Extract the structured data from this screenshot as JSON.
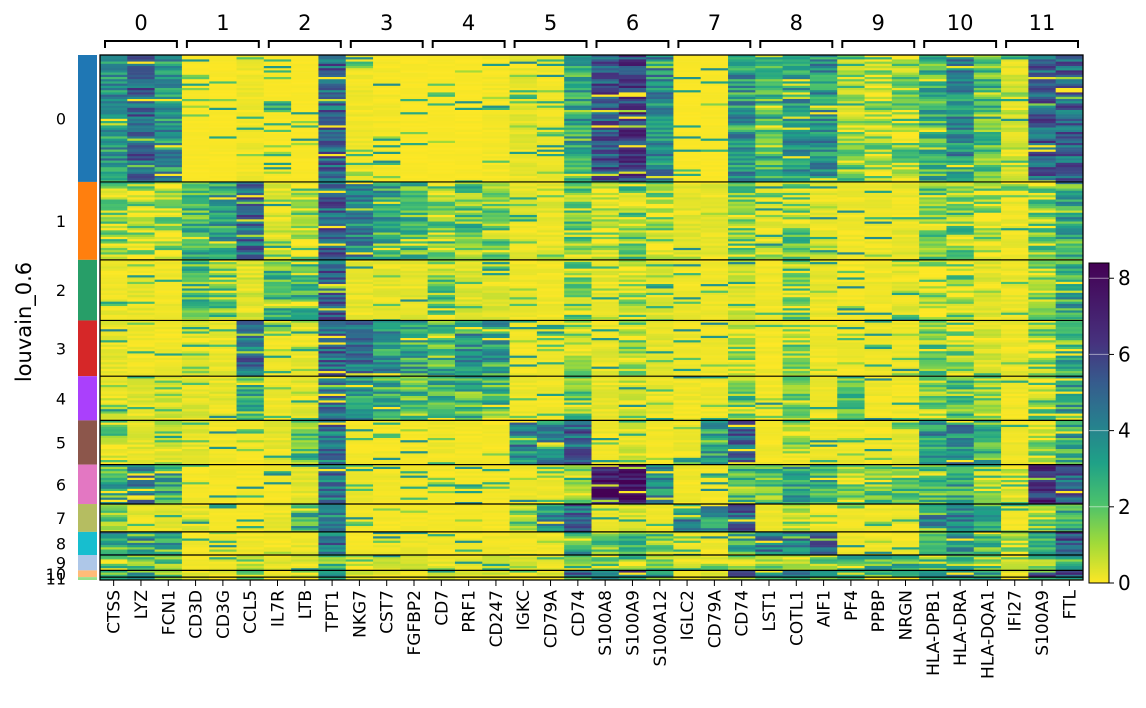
{
  "chart_data": {
    "type": "heatmap",
    "ylabel": "louvain_0.6",
    "group_labels": [
      "0",
      "1",
      "2",
      "3",
      "4",
      "5",
      "6",
      "7",
      "8",
      "9",
      "10",
      "11"
    ],
    "genes": [
      "CTSS",
      "LYZ",
      "FCN1",
      "CD3D",
      "CD3G",
      "CCL5",
      "IL7R",
      "LTB",
      "TPT1",
      "NKG7",
      "CST7",
      "FGFBP2",
      "CD7",
      "PRF1",
      "CD247",
      "IGKC",
      "CD79A",
      "CD74",
      "S100A8",
      "S100A9",
      "S100A12",
      "IGLC2",
      "CD79A",
      "CD74",
      "LST1",
      "COTL1",
      "AIF1",
      "PF4",
      "PPBP",
      "NRGN",
      "HLA-DPB1",
      "HLA-DRA",
      "HLA-DQA1",
      "IFI27",
      "S100A9",
      "FTL"
    ],
    "gene_groups": [
      {
        "label": "0",
        "genes": [
          "CTSS",
          "LYZ",
          "FCN1"
        ]
      },
      {
        "label": "1",
        "genes": [
          "CD3D",
          "CD3G",
          "CCL5"
        ]
      },
      {
        "label": "2",
        "genes": [
          "IL7R",
          "LTB",
          "TPT1"
        ]
      },
      {
        "label": "3",
        "genes": [
          "NKG7",
          "CST7",
          "FGFBP2"
        ]
      },
      {
        "label": "4",
        "genes": [
          "CD7",
          "PRF1",
          "CD247"
        ]
      },
      {
        "label": "5",
        "genes": [
          "IGKC",
          "CD79A",
          "CD74"
        ]
      },
      {
        "label": "6",
        "genes": [
          "S100A8",
          "S100A9",
          "S100A12"
        ]
      },
      {
        "label": "7",
        "genes": [
          "IGLC2",
          "CD79A",
          "CD74"
        ]
      },
      {
        "label": "8",
        "genes": [
          "LST1",
          "COTL1",
          "AIF1"
        ]
      },
      {
        "label": "9",
        "genes": [
          "PF4",
          "PPBP",
          "NRGN"
        ]
      },
      {
        "label": "10",
        "genes": [
          "HLA-DPB1",
          "HLA-DRA",
          "HLA-DQA1"
        ]
      },
      {
        "label": "11",
        "genes": [
          "IFI27",
          "S100A9",
          "FTL"
        ]
      }
    ],
    "clusters": [
      {
        "label": "0",
        "cell_fraction": 0.2418,
        "color": "#1f77b4"
      },
      {
        "label": "1",
        "cell_fraction": 0.1484,
        "color": "#ff7f0e"
      },
      {
        "label": "2",
        "cell_fraction": 0.1154,
        "color": "#279e68"
      },
      {
        "label": "3",
        "cell_fraction": 0.1062,
        "color": "#d62728"
      },
      {
        "label": "4",
        "cell_fraction": 0.0842,
        "color": "#aa40fc"
      },
      {
        "label": "5",
        "cell_fraction": 0.0842,
        "color": "#8c564b"
      },
      {
        "label": "6",
        "cell_fraction": 0.0751,
        "color": "#e377c2"
      },
      {
        "label": "7",
        "cell_fraction": 0.0531,
        "color": "#b5bd61"
      },
      {
        "label": "8",
        "cell_fraction": 0.044,
        "color": "#17becf"
      },
      {
        "label": "9",
        "cell_fraction": 0.0293,
        "color": "#aec7e8"
      },
      {
        "label": "10",
        "cell_fraction": 0.0128,
        "color": "#ffbb78"
      },
      {
        "label": "11",
        "cell_fraction": 0.0055,
        "color": "#98df8a"
      }
    ],
    "mean_expression": [
      [
        3.5,
        5.0,
        3.5,
        0.1,
        0.1,
        0.3,
        0.1,
        0.1,
        5.0,
        0.3,
        0.2,
        0.1,
        0.1,
        0.1,
        0.2,
        0.5,
        0.3,
        3.0,
        5.5,
        6.0,
        3.8,
        0.1,
        0.1,
        3.5,
        2.5,
        3.3,
        3.6,
        1.5,
        1.0,
        1.2,
        2.5,
        3.8,
        2.2,
        0.8,
        5.2,
        5.0
      ],
      [
        1.2,
        1.0,
        1.0,
        2.5,
        3.0,
        4.8,
        0.8,
        1.2,
        5.0,
        4.0,
        3.0,
        2.2,
        1.5,
        2.0,
        1.5,
        0.5,
        0.5,
        1.5,
        1.0,
        1.5,
        1.0,
        0.5,
        0.5,
        1.3,
        0.5,
        1.5,
        0.6,
        0.3,
        0.3,
        0.5,
        1.5,
        1.5,
        1.0,
        0.4,
        1.5,
        3.2
      ],
      [
        0.4,
        0.5,
        0.3,
        2.0,
        1.8,
        0.8,
        2.2,
        2.5,
        5.2,
        0.5,
        0.5,
        0.5,
        1.5,
        0.8,
        0.6,
        0.3,
        0.3,
        1.2,
        0.5,
        1.0,
        0.6,
        0.3,
        0.3,
        0.9,
        0.3,
        1.5,
        0.4,
        0.3,
        0.3,
        0.5,
        1.0,
        1.2,
        0.6,
        0.4,
        1.2,
        3.0
      ],
      [
        0.5,
        0.3,
        0.3,
        0.6,
        0.5,
        4.6,
        0.3,
        0.5,
        4.8,
        4.5,
        3.5,
        3.0,
        2.5,
        3.5,
        3.0,
        0.3,
        0.3,
        1.3,
        0.5,
        1.0,
        0.5,
        0.3,
        0.3,
        1.2,
        0.3,
        1.2,
        0.3,
        0.3,
        0.3,
        0.3,
        1.5,
        1.0,
        0.8,
        0.4,
        1.2,
        3.0
      ],
      [
        0.8,
        0.6,
        0.8,
        0.6,
        0.5,
        2.5,
        0.3,
        0.6,
        4.2,
        3.2,
        2.6,
        2.3,
        2.8,
        2.5,
        2.4,
        0.3,
        0.3,
        1.8,
        0.5,
        0.8,
        0.5,
        0.3,
        0.3,
        1.8,
        0.3,
        1.5,
        0.3,
        1.8,
        0.3,
        0.3,
        1.5,
        1.8,
        1.0,
        0.3,
        1.5,
        3.0
      ],
      [
        1.2,
        0.6,
        0.8,
        0.5,
        0.3,
        0.2,
        0.5,
        2.0,
        4.5,
        0.2,
        0.2,
        0.2,
        0.3,
        0.2,
        0.2,
        4.0,
        3.8,
        5.0,
        0.3,
        0.8,
        0.3,
        0.3,
        3.0,
        5.0,
        0.3,
        1.2,
        0.3,
        0.3,
        0.3,
        0.5,
        3.5,
        4.0,
        2.5,
        0.3,
        1.0,
        3.0
      ],
      [
        2.5,
        4.5,
        3.0,
        0.2,
        0.2,
        0.2,
        0.2,
        0.5,
        4.5,
        0.3,
        0.3,
        0.2,
        0.2,
        0.2,
        0.2,
        0.3,
        0.3,
        2.0,
        7.5,
        7.2,
        4.0,
        0.3,
        0.2,
        2.0,
        2.0,
        3.0,
        2.5,
        1.5,
        1.5,
        1.8,
        2.0,
        3.0,
        1.5,
        1.0,
        6.5,
        5.0
      ],
      [
        1.5,
        0.5,
        0.5,
        0.5,
        0.2,
        0.3,
        0.5,
        2.5,
        4.0,
        0.2,
        0.2,
        0.2,
        0.2,
        0.2,
        0.2,
        1.5,
        3.5,
        4.8,
        0.3,
        0.8,
        0.3,
        4.0,
        3.5,
        4.8,
        0.3,
        1.0,
        0.3,
        0.3,
        0.3,
        0.5,
        3.5,
        4.0,
        3.0,
        0.3,
        1.0,
        3.0
      ],
      [
        3.5,
        4.0,
        3.5,
        0.3,
        0.3,
        0.3,
        0.3,
        0.5,
        4.5,
        0.3,
        0.3,
        0.3,
        0.3,
        0.3,
        0.3,
        0.3,
        0.3,
        3.0,
        1.5,
        2.8,
        1.5,
        0.3,
        0.3,
        3.0,
        4.5,
        4.5,
        4.5,
        0.3,
        0.3,
        0.3,
        3.0,
        3.5,
        2.0,
        1.0,
        3.0,
        5.5
      ],
      [
        1.5,
        2.0,
        1.5,
        0.5,
        0.5,
        1.0,
        0.5,
        0.8,
        2.5,
        1.0,
        0.8,
        0.8,
        0.5,
        0.5,
        0.8,
        0.8,
        0.5,
        1.5,
        1.5,
        2.0,
        1.5,
        0.8,
        0.5,
        1.5,
        1.0,
        1.8,
        1.2,
        3.0,
        2.5,
        2.5,
        1.8,
        2.0,
        1.5,
        0.8,
        2.0,
        2.8
      ],
      [
        2.0,
        5.0,
        2.0,
        0.8,
        0.5,
        1.2,
        0.5,
        1.0,
        4.5,
        0.8,
        0.5,
        0.5,
        0.8,
        0.8,
        0.8,
        0.5,
        0.8,
        5.0,
        4.5,
        5.5,
        3.5,
        0.3,
        0.5,
        5.0,
        3.0,
        3.5,
        3.5,
        1.5,
        2.0,
        2.0,
        4.0,
        5.0,
        3.5,
        0.5,
        5.5,
        6.0
      ],
      [
        2.0,
        2.5,
        2.5,
        0.5,
        0.5,
        1.0,
        0.5,
        0.5,
        3.5,
        0.8,
        0.5,
        0.5,
        0.5,
        0.5,
        0.5,
        0.5,
        0.5,
        2.0,
        2.5,
        3.0,
        2.5,
        0.5,
        0.5,
        2.0,
        2.0,
        2.5,
        2.0,
        1.0,
        1.0,
        1.0,
        2.5,
        3.0,
        2.0,
        3.5,
        3.5,
        4.0
      ]
    ],
    "colorbar": {
      "colormap": "viridis_r",
      "vmin": 0,
      "vmax": 8.4,
      "ticks": [
        0,
        2,
        4,
        6,
        8
      ],
      "tick_labels": [
        "0",
        "2",
        "4",
        "6",
        "8"
      ]
    }
  }
}
